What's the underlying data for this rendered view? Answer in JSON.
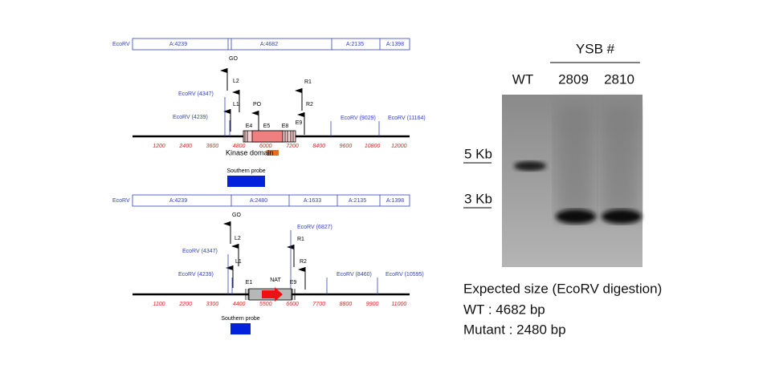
{
  "wt_map": {
    "enzyme": "EcoRV",
    "fragments": [
      "A:4239",
      "A:4682",
      "A:2135",
      "A:1398"
    ],
    "primers": [
      "GO",
      "L2",
      "L1",
      "PO",
      "R1",
      "R2"
    ],
    "sites": [
      "EcoRV (4347)",
      "EcoRV (4239)",
      "EcoRV (9029)",
      "EcoRV (11164)"
    ],
    "exons": [
      "E4",
      "E5",
      "E8",
      "E9"
    ],
    "scale": [
      1200,
      2400,
      3600,
      4800,
      6000,
      7200,
      8400,
      9600,
      10800,
      12000
    ],
    "domain_label": "Kinase domain",
    "probe_label": "Southern probe"
  },
  "mutant_map": {
    "enzyme": "EcoRV",
    "fragments": [
      "A:4239",
      "A:2480",
      "A:1633",
      "A:2135",
      "A:1398"
    ],
    "primers": [
      "GO",
      "L2",
      "L1",
      "R1",
      "R2"
    ],
    "sites": [
      "EcoRV (4347)",
      "EcoRV (4239)",
      "EcoRV (6827)",
      "EcoRV (8460)",
      "EcoRV (10595)"
    ],
    "exons": [
      "E1",
      "NAT",
      "E9"
    ],
    "scale": [
      1100,
      2200,
      3300,
      4400,
      5500,
      6600,
      7700,
      8800,
      9900,
      11000
    ],
    "probe_label": "Southern probe"
  },
  "gel": {
    "group_label": "YSB #",
    "lanes": [
      "WT",
      "2809",
      "2810"
    ],
    "markers": [
      "5 Kb",
      "3 Kb"
    ]
  },
  "notes": [
    "Expected size (EcoRV digestion)",
    "WT : 4682 bp",
    "Mutant : 2480 bp"
  ]
}
